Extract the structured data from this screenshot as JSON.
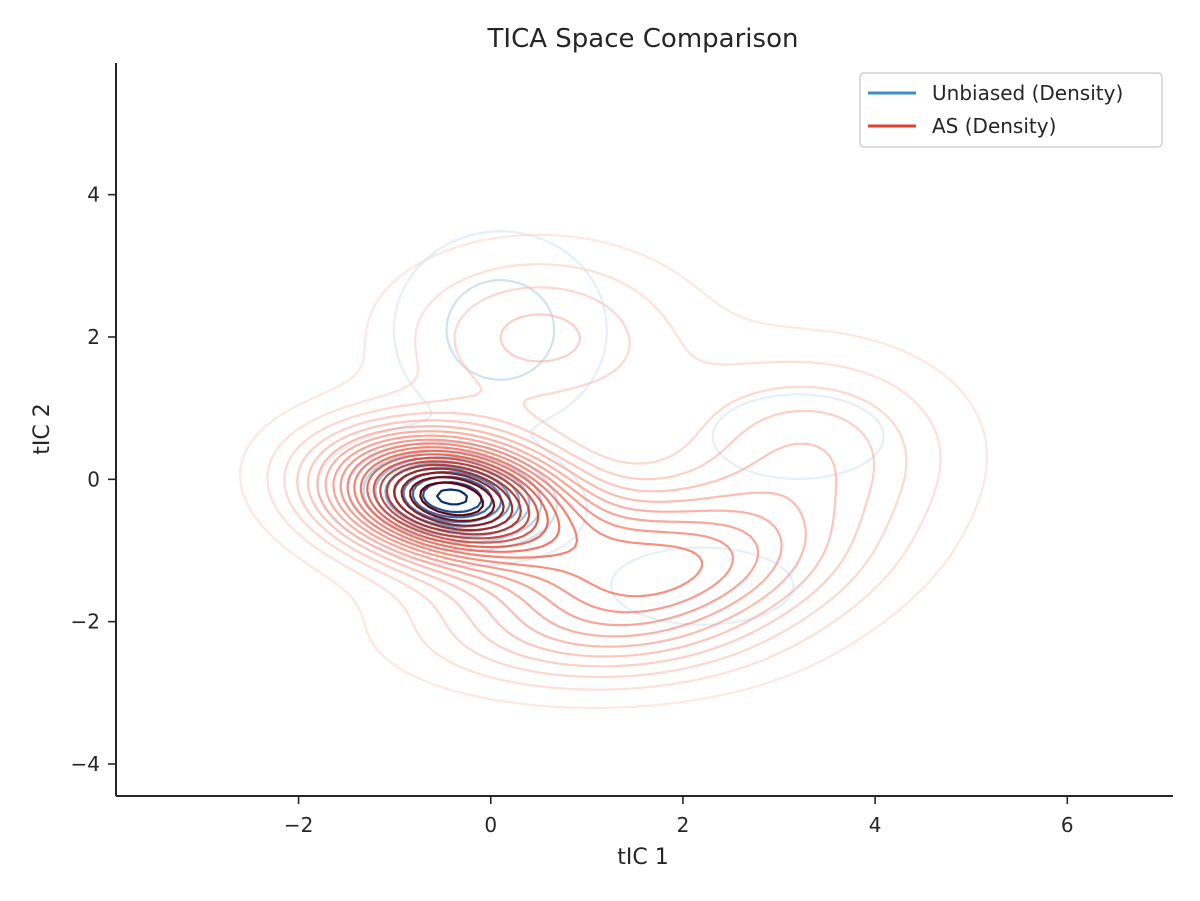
{
  "chart_data": {
    "type": "contour",
    "title": "TICA Space Comparison",
    "xlabel": "tIC 1",
    "ylabel": "tIC 2",
    "xlim": [
      -3.9,
      7.1
    ],
    "ylim": [
      -4.45,
      5.85
    ],
    "xticks": [
      {
        "value": -2,
        "label": "−2"
      },
      {
        "value": 0,
        "label": "0"
      },
      {
        "value": 2,
        "label": "2"
      },
      {
        "value": 4,
        "label": "4"
      },
      {
        "value": 6,
        "label": "6"
      }
    ],
    "yticks": [
      {
        "value": -4,
        "label": "−4"
      },
      {
        "value": -2,
        "label": "−2"
      },
      {
        "value": 0,
        "label": "0"
      },
      {
        "value": 2,
        "label": "2"
      },
      {
        "value": 4,
        "label": "4"
      }
    ],
    "grid": false,
    "legend_position": "top-right",
    "series": [
      {
        "name": "Unbiased (Density)",
        "color": "#3a8fc8",
        "colormap": "Blues",
        "levels": 10,
        "components": [
          {
            "weight": 1.0,
            "mx": -0.4,
            "my": -0.25,
            "sx": 0.55,
            "sy": 0.38,
            "rho": -0.15
          },
          {
            "weight": 0.22,
            "mx": 0.1,
            "my": 2.1,
            "sx": 0.6,
            "sy": 0.75,
            "rho": 0.0
          },
          {
            "weight": 0.12,
            "mx": 3.2,
            "my": 0.6,
            "sx": 0.6,
            "sy": 0.4,
            "rho": 0.0
          },
          {
            "weight": 0.1,
            "mx": 2.2,
            "my": -1.5,
            "sx": 0.7,
            "sy": 0.4,
            "rho": 0.0
          }
        ]
      },
      {
        "name": "AS (Density)",
        "color": "#e0402e",
        "colormap": "Reds",
        "levels": 20,
        "components": [
          {
            "weight": 1.0,
            "mx": -0.45,
            "my": -0.25,
            "sx": 0.85,
            "sy": 0.6,
            "rho": -0.2
          },
          {
            "weight": 0.45,
            "mx": 1.8,
            "my": -1.2,
            "sx": 1.2,
            "sy": 0.7,
            "rho": 0.1
          },
          {
            "weight": 0.2,
            "mx": 0.5,
            "my": 2.0,
            "sx": 1.0,
            "sy": 0.8,
            "rho": 0.0
          },
          {
            "weight": 0.22,
            "mx": 3.3,
            "my": 0.4,
            "sx": 1.0,
            "sy": 0.9,
            "rho": 0.0
          },
          {
            "weight": 0.18,
            "mx": 1.0,
            "my": -2.2,
            "sx": 1.2,
            "sy": 0.55,
            "rho": 0.0
          }
        ]
      }
    ]
  }
}
